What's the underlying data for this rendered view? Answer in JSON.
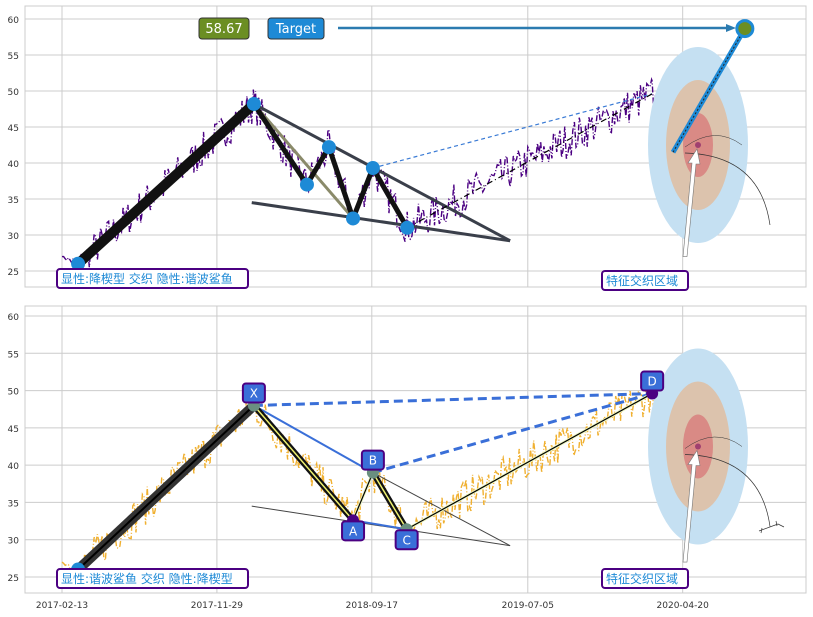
{
  "chart_data": [
    {
      "type": "line",
      "panel": "top",
      "ylim": [
        22.5,
        61.5
      ],
      "yticks": [
        25,
        30,
        35,
        40,
        45,
        50,
        55,
        60
      ],
      "series_color": "#4b0082",
      "pivots": [
        [
          0,
          27
        ],
        [
          30,
          26
        ],
        [
          358,
          48.2
        ],
        [
          457,
          37
        ],
        [
          498,
          42.2
        ],
        [
          543,
          32.3
        ],
        [
          580,
          39.3
        ],
        [
          644,
          31
        ],
        [
          1101,
          49.6
        ],
        [
          1140,
          41
        ]
      ],
      "pattern_points": [
        [
          30,
          26
        ],
        [
          358,
          48.2
        ],
        [
          457,
          37
        ],
        [
          498,
          42.2
        ],
        [
          543,
          32.3
        ],
        [
          580,
          39.3
        ],
        [
          644,
          31
        ]
      ],
      "upper_line": [
        [
          358,
          48.2
        ],
        [
          836,
          29.2
        ]
      ],
      "lower_line": [
        [
          354,
          34.5
        ],
        [
          644,
          31
        ]
      ],
      "target_value": "58.67",
      "target_label": "Target",
      "target_point": [
        1274,
        58.67
      ],
      "target_start": [
        1140,
        41.5
      ],
      "pattern_label": "显性:降楔型 交织 隐性:谐波鲨鱼",
      "zone_label": "特征交织区域"
    },
    {
      "type": "line",
      "panel": "bottom",
      "ylim": [
        22.5,
        61.5
      ],
      "yticks": [
        25,
        30,
        35,
        40,
        45,
        50,
        55,
        60
      ],
      "series_color": "#f0b030",
      "points": {
        "X": [
          358,
          48
        ],
        "A": [
          543,
          32.6
        ],
        "B": [
          580,
          39
        ],
        "C": [
          643,
          31.4
        ],
        "D": [
          1101,
          49.6
        ]
      },
      "start": [
        30,
        26
      ],
      "pattern_label": "显性:谐波鲨鱼 交织 隐性:降楔型",
      "zone_label": "特征交织区域"
    }
  ],
  "xticks": [
    {
      "day": 0,
      "label": "2017-02-13"
    },
    {
      "day": 289,
      "label": "2017-11-29"
    },
    {
      "day": 578,
      "label": "2018-09-17"
    },
    {
      "day": 869,
      "label": "2019-07-05"
    },
    {
      "day": 1158,
      "label": "2020-04-20"
    }
  ]
}
